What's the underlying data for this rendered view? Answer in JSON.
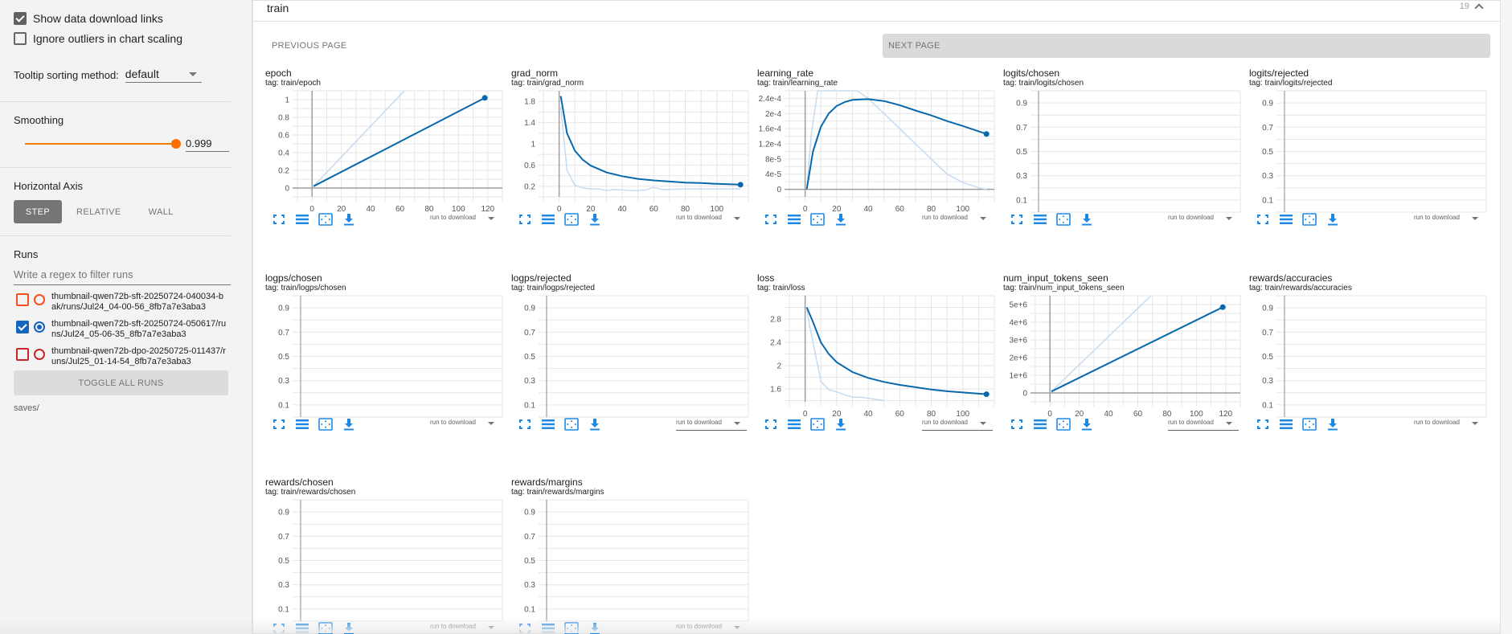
{
  "sidebar": {
    "show_download_links": {
      "label": "Show data download links",
      "checked": true
    },
    "ignore_outliers": {
      "label": "Ignore outliers in chart scaling",
      "checked": false
    },
    "tooltip_sorting": {
      "label": "Tooltip sorting method:",
      "value": "default"
    },
    "smoothing": {
      "label": "Smoothing",
      "value": "0.999"
    },
    "horizontal_axis": {
      "label": "Horizontal Axis",
      "options": [
        "STEP",
        "RELATIVE",
        "WALL"
      ],
      "selected": "STEP"
    },
    "runs": {
      "label": "Runs",
      "filter_placeholder": "Write a regex to filter runs",
      "items": [
        {
          "name": "thumbnail-qwen72b-sft-20250724-040034-bak/runs/Jul24_04-00-56_8fb7a7e3aba3",
          "checked": false,
          "color": "#f4511e"
        },
        {
          "name": "thumbnail-qwen72b-sft-20250724-050617/runs/Jul24_05-06-35_8fb7a7e3aba3",
          "checked": true,
          "color": "#1565c0"
        },
        {
          "name": "thumbnail-qwen72b-dpo-20250725-011437/runs/Jul25_01-14-54_8fb7a7e3aba3",
          "checked": false,
          "color": "#c62828"
        }
      ],
      "toggle_all_label": "TOGGLE ALL RUNS",
      "logdir": "saves/"
    }
  },
  "card": {
    "title": "train",
    "count": "19",
    "prev_label": "PREVIOUS PAGE",
    "next_label": "NEXT PAGE"
  },
  "download_label": "run to download",
  "colors": {
    "series": "#0868ac",
    "series_raw": "#c6dbef",
    "accent": "#ff6d00",
    "icon": "#1e88e5"
  },
  "chart_data": [
    {
      "type": "line",
      "title": "epoch",
      "tag": "tag: train/epoch",
      "xticks": [
        "0",
        "20",
        "40",
        "60",
        "80",
        "100",
        "120"
      ],
      "yticks": [
        "0",
        "0.2",
        "0.4",
        "0.6",
        "0.8",
        "1"
      ],
      "xlim": [
        -10,
        130
      ],
      "ylim": [
        -0.1,
        1.1
      ],
      "series": [
        {
          "name": "smoothed",
          "x": [
            1,
            118
          ],
          "y": [
            0.02,
            1.02
          ]
        },
        {
          "name": "raw",
          "x": [
            1,
            63
          ],
          "y": [
            0.02,
            1.1
          ]
        }
      ]
    },
    {
      "type": "line",
      "title": "grad_norm",
      "tag": "tag: train/grad_norm",
      "xticks": [
        "0",
        "20",
        "40",
        "60",
        "80",
        "100"
      ],
      "yticks": [
        "0.2",
        "0.6",
        "1",
        "1.4",
        "1.8"
      ],
      "xlim": [
        -10,
        120
      ],
      "ylim": [
        0,
        2.0
      ],
      "series": [
        {
          "name": "smoothed",
          "x": [
            1,
            5,
            10,
            15,
            20,
            30,
            40,
            50,
            60,
            70,
            80,
            90,
            100,
            115
          ],
          "y": [
            1.9,
            1.2,
            0.87,
            0.7,
            0.59,
            0.46,
            0.39,
            0.34,
            0.31,
            0.29,
            0.27,
            0.26,
            0.245,
            0.23
          ]
        },
        {
          "name": "raw",
          "x": [
            1,
            5,
            10,
            15,
            20,
            25,
            30,
            35,
            40,
            45,
            50,
            55,
            60,
            65,
            70,
            80,
            90,
            100,
            115
          ],
          "y": [
            1.7,
            0.5,
            0.22,
            0.17,
            0.15,
            0.15,
            0.12,
            0.14,
            0.13,
            0.12,
            0.12,
            0.13,
            0.18,
            0.14,
            0.14,
            0.15,
            0.15,
            0.15,
            0.15
          ]
        }
      ]
    },
    {
      "type": "line",
      "title": "learning_rate",
      "tag": "tag: train/learning_rate",
      "xticks": [
        "0",
        "20",
        "40",
        "60",
        "80",
        "100"
      ],
      "yticks": [
        "0",
        "4e-5",
        "8e-5",
        "1.2e-4",
        "1.6e-4",
        "2e-4",
        "2.4e-4"
      ],
      "xlim": [
        -10,
        120
      ],
      "ylim": [
        -2e-05,
        0.00026
      ],
      "series": [
        {
          "name": "smoothed",
          "x": [
            1,
            5,
            10,
            15,
            20,
            25,
            30,
            40,
            50,
            60,
            70,
            80,
            90,
            100,
            115
          ],
          "y": [
            0,
            0.0001,
            0.000165,
            0.0002,
            0.00022,
            0.00023,
            0.000236,
            0.000238,
            0.000233,
            0.000222,
            0.000208,
            0.000195,
            0.00018,
            0.000167,
            0.000146
          ]
        },
        {
          "name": "raw",
          "x": [
            1,
            4,
            8,
            33,
            40,
            50,
            60,
            70,
            80,
            90,
            100,
            110,
            115
          ],
          "y": [
            0,
            0.00015,
            0.00026,
            0.00026,
            0.00024,
            0.0002,
            0.00016,
            0.00012,
            8e-05,
            4e-05,
            1.8e-05,
            4e-06,
            0
          ]
        }
      ]
    },
    {
      "type": "line",
      "title": "logits/chosen",
      "tag": "tag: train/logits/chosen",
      "yticks": [
        "0.1",
        "0.3",
        "0.5",
        "0.7",
        "0.9"
      ],
      "xlim": [
        0,
        1
      ],
      "ylim": [
        0,
        1
      ],
      "series": []
    },
    {
      "type": "line",
      "title": "logits/rejected",
      "tag": "tag: train/logits/rejected",
      "yticks": [
        "0.1",
        "0.3",
        "0.5",
        "0.7",
        "0.9"
      ],
      "xlim": [
        0,
        1
      ],
      "ylim": [
        0,
        1
      ],
      "series": []
    },
    {
      "type": "line",
      "title": "logps/chosen",
      "tag": "tag: train/logps/chosen",
      "yticks": [
        "0.1",
        "0.3",
        "0.5",
        "0.7",
        "0.9"
      ],
      "xlim": [
        0,
        1
      ],
      "ylim": [
        0,
        1
      ],
      "series": []
    },
    {
      "type": "line",
      "title": "logps/rejected",
      "tag": "tag: train/logps/rejected",
      "yticks": [
        "0.1",
        "0.3",
        "0.5",
        "0.7",
        "0.9"
      ],
      "xlim": [
        0,
        1
      ],
      "ylim": [
        0,
        1
      ],
      "series": []
    },
    {
      "type": "line",
      "title": "loss",
      "tag": "tag: train/loss",
      "xticks": [
        "0",
        "20",
        "40",
        "60",
        "80",
        "100"
      ],
      "yticks": [
        "1.6",
        "2",
        "2.4",
        "2.8"
      ],
      "xlim": [
        -10,
        120
      ],
      "ylim": [
        1.38,
        3.2
      ],
      "series": [
        {
          "name": "smoothed",
          "x": [
            1,
            5,
            10,
            15,
            20,
            30,
            40,
            50,
            60,
            70,
            80,
            90,
            100,
            115
          ],
          "y": [
            3.0,
            2.75,
            2.4,
            2.2,
            2.06,
            1.89,
            1.79,
            1.72,
            1.67,
            1.63,
            1.59,
            1.56,
            1.54,
            1.51
          ]
        },
        {
          "name": "raw",
          "x": [
            1,
            5,
            10,
            15,
            20,
            25,
            30,
            35,
            40,
            50
          ],
          "y": [
            2.95,
            2.4,
            1.73,
            1.59,
            1.55,
            1.5,
            1.46,
            1.46,
            1.44,
            1.4
          ]
        }
      ]
    },
    {
      "type": "line",
      "title": "num_input_tokens_seen",
      "tag": "tag: train/num_input_tokens_seen",
      "xticks": [
        "0",
        "20",
        "40",
        "60",
        "80",
        "100",
        "120"
      ],
      "yticks": [
        "0",
        "1e+6",
        "2e+6",
        "3e+6",
        "4e+6",
        "5e+6"
      ],
      "xlim": [
        -10,
        130
      ],
      "ylim": [
        -500000,
        5500000
      ],
      "series": [
        {
          "name": "smoothed",
          "x": [
            1,
            118
          ],
          "y": [
            80000,
            4850000
          ]
        },
        {
          "name": "raw",
          "x": [
            1,
            69
          ],
          "y": [
            80000,
            5500000
          ]
        }
      ]
    },
    {
      "type": "line",
      "title": "rewards/accuracies",
      "tag": "tag: train/rewards/accuracies",
      "yticks": [
        "0.1",
        "0.3",
        "0.5",
        "0.7",
        "0.9"
      ],
      "xlim": [
        0,
        1
      ],
      "ylim": [
        0,
        1
      ],
      "series": []
    },
    {
      "type": "line",
      "title": "rewards/chosen",
      "tag": "tag: train/rewards/chosen",
      "yticks": [
        "0.1",
        "0.3",
        "0.5",
        "0.7",
        "0.9"
      ],
      "xlim": [
        0,
        1
      ],
      "ylim": [
        0,
        1
      ],
      "series": []
    },
    {
      "type": "line",
      "title": "rewards/margins",
      "tag": "tag: train/rewards/margins",
      "yticks": [
        "0.1",
        "0.3",
        "0.5",
        "0.7",
        "0.9"
      ],
      "xlim": [
        0,
        1
      ],
      "ylim": [
        0,
        1
      ],
      "series": []
    }
  ]
}
